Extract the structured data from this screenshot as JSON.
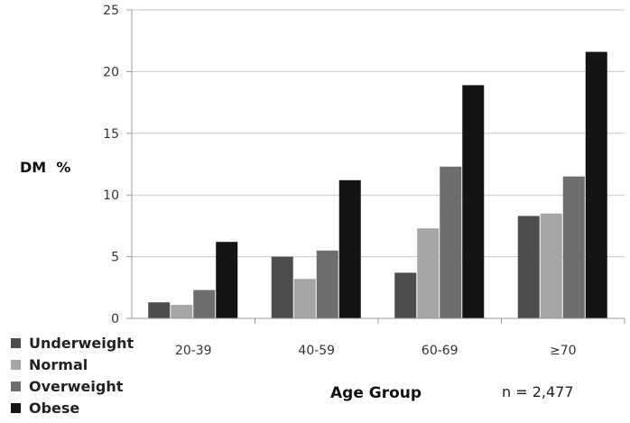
{
  "chart_data": {
    "type": "bar",
    "title": "",
    "ylabel": "DM  %",
    "xlabel": "Age Group",
    "annotation": "n = 2,477",
    "categories": [
      "20-39",
      "40-59",
      "60-69",
      "≥70"
    ],
    "ylim": [
      0,
      25
    ],
    "yticks": [
      0,
      5,
      10,
      15,
      20,
      25
    ],
    "grid": true,
    "legend_position": "bottom-left",
    "series": [
      {
        "name": "Underweight",
        "color": "#4d4d4d",
        "values": [
          1.3,
          5.0,
          3.7,
          8.3
        ]
      },
      {
        "name": "Normal",
        "color": "#a6a6a6",
        "values": [
          1.1,
          3.2,
          7.3,
          8.5
        ]
      },
      {
        "name": "Overweight",
        "color": "#6e6e6e",
        "values": [
          2.3,
          5.5,
          12.3,
          11.5
        ]
      },
      {
        "name": "Obese",
        "color": "#141414",
        "values": [
          6.2,
          11.2,
          18.9,
          21.6
        ]
      }
    ]
  }
}
